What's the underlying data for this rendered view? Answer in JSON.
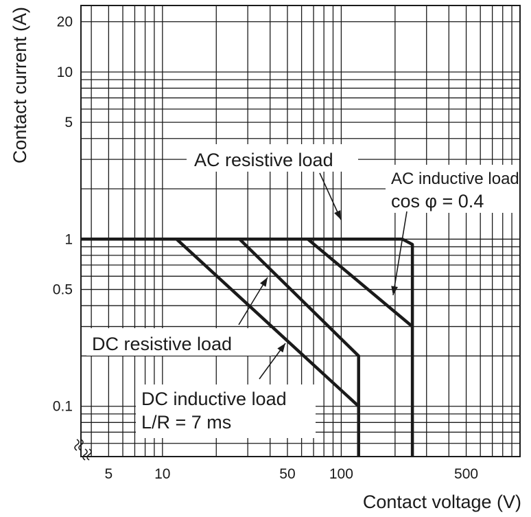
{
  "chart_data": {
    "type": "line",
    "x_scale": "log",
    "y_scale": "log",
    "xlim": [
      3.5,
      1000
    ],
    "ylim": [
      0.05,
      25
    ],
    "grid": true,
    "xlabel": "Contact voltage (V)",
    "ylabel": "Contact current (A)",
    "x_tick_labels": [
      {
        "value": 5,
        "label": "5"
      },
      {
        "value": 10,
        "label": "10"
      },
      {
        "value": 50,
        "label": "50"
      },
      {
        "value": 100,
        "label": "100"
      },
      {
        "value": 500,
        "label": "500"
      }
    ],
    "y_tick_labels": [
      {
        "value": 0.1,
        "label": "0.1"
      },
      {
        "value": 0.5,
        "label": "0.5"
      },
      {
        "value": 1,
        "label": "1"
      },
      {
        "value": 5,
        "label": "5"
      },
      {
        "value": 10,
        "label": "10"
      },
      {
        "value": 20,
        "label": "20"
      }
    ],
    "series": [
      {
        "key": "ac_resistive",
        "points": [
          [
            3.5,
            1
          ],
          [
            220,
            1
          ],
          [
            250,
            0.93
          ],
          [
            250,
            0.05
          ]
        ]
      },
      {
        "key": "ac_inductive",
        "points": [
          [
            65,
            1
          ],
          [
            250,
            0.3
          ]
        ]
      },
      {
        "key": "dc_resistive",
        "points": [
          [
            27,
            1
          ],
          [
            125,
            0.2
          ],
          [
            125,
            0.05
          ]
        ]
      },
      {
        "key": "dc_inductive",
        "points": [
          [
            12,
            1
          ],
          [
            125,
            0.1
          ]
        ]
      }
    ],
    "annotations": [
      {
        "key": "ac_resistive",
        "lines": [
          "AC resistive load"
        ]
      },
      {
        "key": "ac_inductive",
        "lines": [
          "AC inductive load",
          "cos φ = 0.4"
        ]
      },
      {
        "key": "dc_resistive",
        "lines": [
          "DC resistive load"
        ]
      },
      {
        "key": "dc_inductive",
        "lines": [
          "DC inductive load",
          "L/R = 7 ms"
        ]
      }
    ]
  }
}
